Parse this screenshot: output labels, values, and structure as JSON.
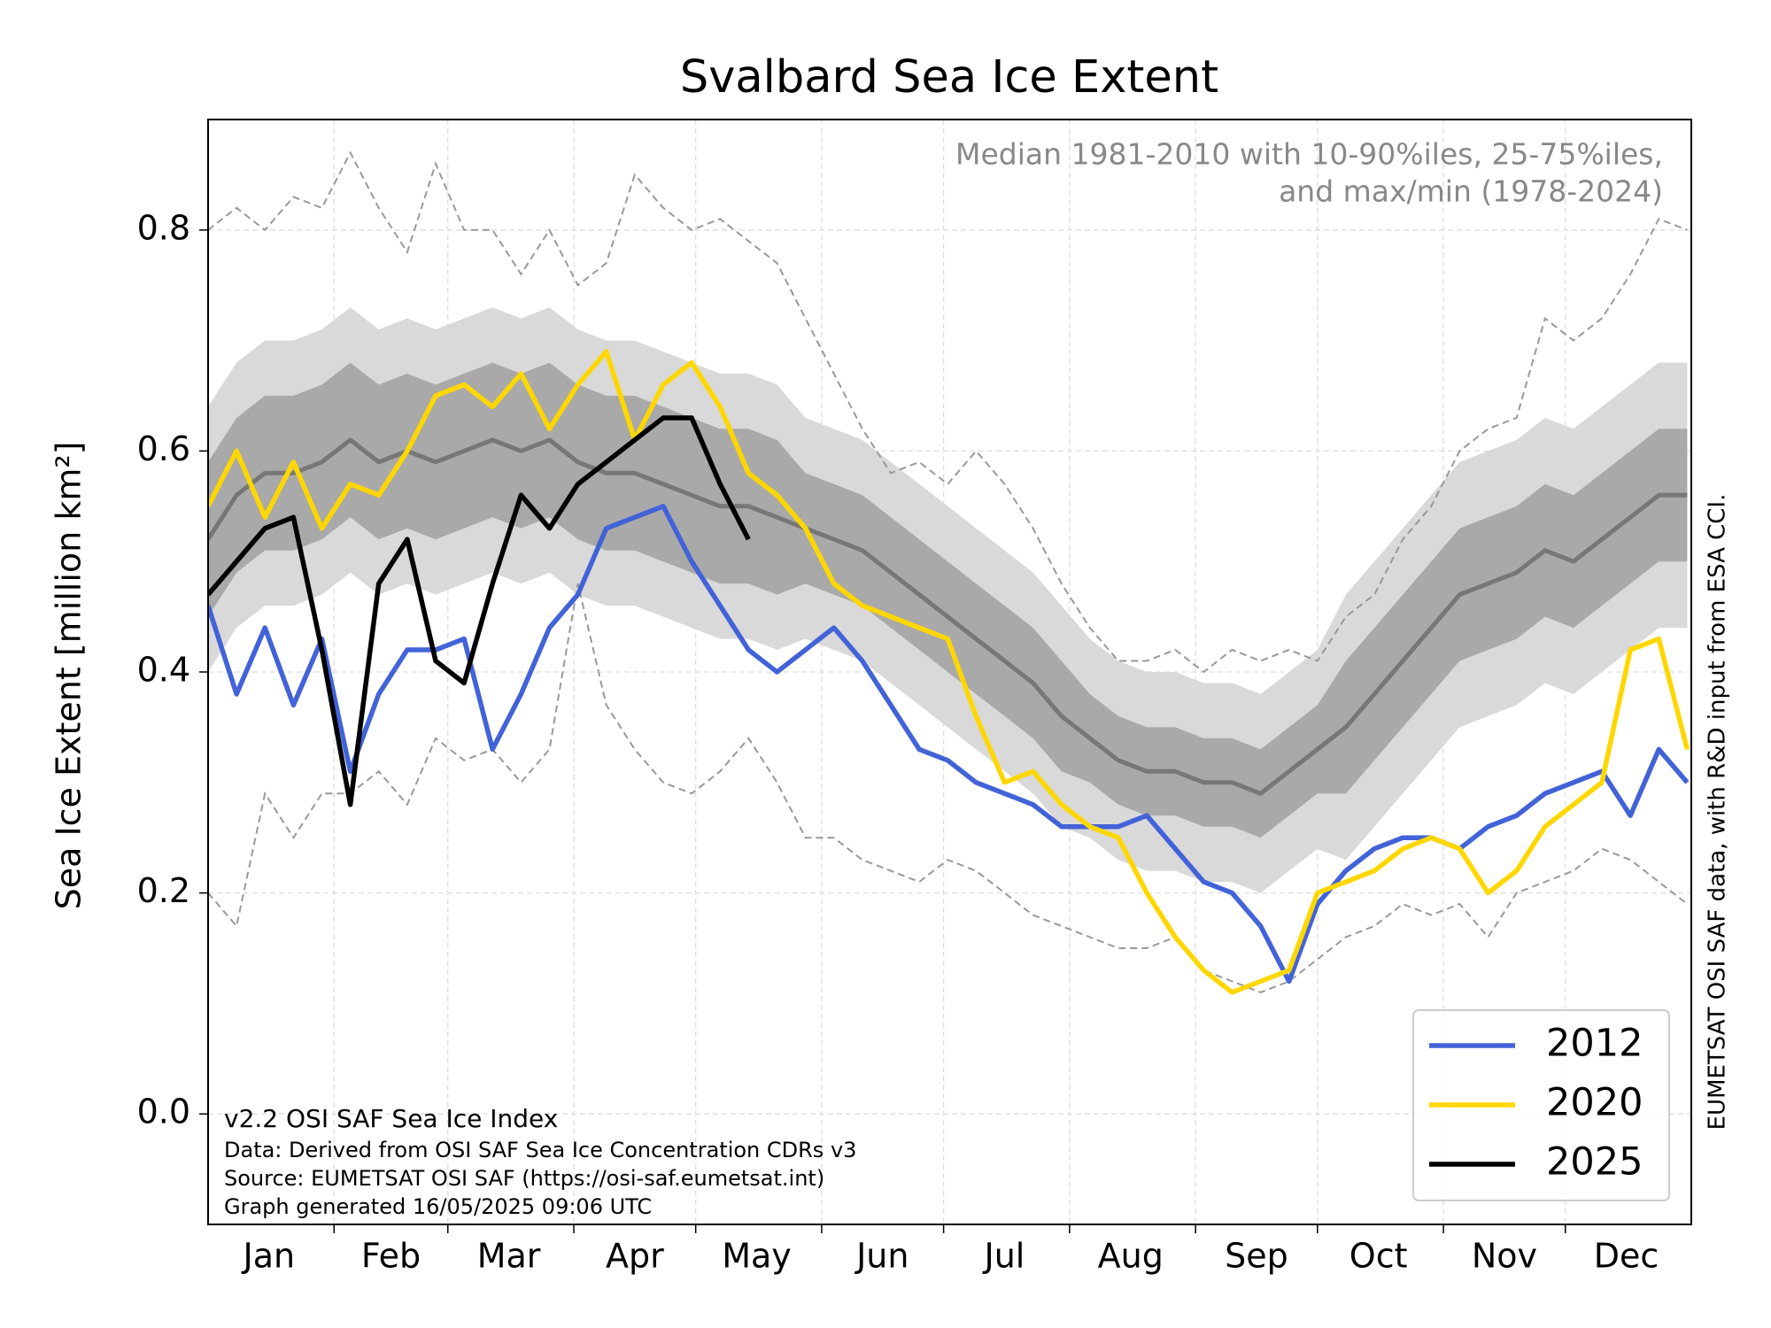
{
  "chart_data": {
    "type": "line",
    "title": "Svalbard Sea Ice Extent",
    "y_label": "Sea Ice Extent [million km²]",
    "annotation": [
      "Median 1981-2010 with 10-90%iles, 25-75%iles,",
      "and max/min (1978-2024)"
    ],
    "footnotes": [
      "v2.2 OSI SAF Sea Ice Index",
      "Data: Derived from OSI SAF Sea Ice Concentration CDRs v3",
      "Source: EUMETSAT OSI SAF (https://osi-saf.eumetsat.int)",
      "Graph generated 16/05/2025 09:06 UTC"
    ],
    "side_note": "EUMETSAT OSI SAF data, with R&D input from ESA CCI.",
    "xlim": [
      1,
      366
    ],
    "ylim": [
      -0.1,
      0.9
    ],
    "yticks": [
      {
        "value": 0,
        "label": "0.0"
      },
      0.2,
      0.4,
      0.6,
      0.8
    ],
    "xticks": [
      {
        "value": 16,
        "label": "Jan"
      },
      {
        "value": 46,
        "label": "Feb"
      },
      {
        "value": 75,
        "label": "Mar"
      },
      {
        "value": 106,
        "label": "Apr"
      },
      {
        "value": 136,
        "label": "May"
      },
      {
        "value": 167,
        "label": "Jun"
      },
      {
        "value": 197,
        "label": "Jul"
      },
      {
        "value": 228,
        "label": "Aug"
      },
      {
        "value": 259,
        "label": "Sep"
      },
      {
        "value": 289,
        "label": "Oct"
      },
      {
        "value": 320,
        "label": "Nov"
      },
      {
        "value": 350,
        "label": "Dec"
      }
    ],
    "xminor": [
      32,
      60,
      91,
      121,
      152,
      182,
      213,
      244,
      274,
      305,
      335
    ],
    "grid": true,
    "legend": "lower right",
    "x": [
      1,
      8,
      15,
      22,
      29,
      36,
      43,
      50,
      57,
      64,
      71,
      78,
      85,
      92,
      99,
      106,
      113,
      120,
      127,
      134,
      141,
      148,
      155,
      162,
      169,
      176,
      183,
      190,
      197,
      204,
      211,
      218,
      225,
      232,
      239,
      246,
      253,
      260,
      267,
      274,
      281,
      288,
      295,
      302,
      309,
      316,
      323,
      330,
      337,
      344,
      351,
      358,
      365
    ],
    "bands": [
      {
        "color": "#d9d9d9",
        "upper": [
          0.64,
          0.68,
          0.7,
          0.7,
          0.71,
          0.73,
          0.71,
          0.72,
          0.71,
          0.72,
          0.73,
          0.72,
          0.73,
          0.71,
          0.7,
          0.7,
          0.69,
          0.68,
          0.67,
          0.67,
          0.66,
          0.63,
          0.62,
          0.61,
          0.59,
          0.57,
          0.55,
          0.53,
          0.51,
          0.49,
          0.46,
          0.43,
          0.41,
          0.4,
          0.4,
          0.39,
          0.39,
          0.38,
          0.4,
          0.42,
          0.47,
          0.5,
          0.53,
          0.56,
          0.59,
          0.6,
          0.61,
          0.63,
          0.62,
          0.64,
          0.66,
          0.68,
          0.68
        ],
        "lower": [
          0.4,
          0.44,
          0.46,
          0.46,
          0.47,
          0.49,
          0.47,
          0.48,
          0.47,
          0.48,
          0.49,
          0.48,
          0.49,
          0.47,
          0.46,
          0.46,
          0.45,
          0.44,
          0.43,
          0.43,
          0.42,
          0.43,
          0.42,
          0.41,
          0.39,
          0.37,
          0.35,
          0.33,
          0.31,
          0.29,
          0.26,
          0.25,
          0.23,
          0.22,
          0.22,
          0.21,
          0.21,
          0.2,
          0.22,
          0.24,
          0.23,
          0.26,
          0.29,
          0.32,
          0.35,
          0.36,
          0.37,
          0.39,
          0.38,
          0.4,
          0.42,
          0.44,
          0.44
        ]
      },
      {
        "color": "#a9a9a9",
        "upper": [
          0.59,
          0.63,
          0.65,
          0.65,
          0.66,
          0.68,
          0.66,
          0.67,
          0.66,
          0.67,
          0.68,
          0.67,
          0.68,
          0.66,
          0.65,
          0.65,
          0.64,
          0.63,
          0.62,
          0.62,
          0.61,
          0.58,
          0.57,
          0.56,
          0.54,
          0.52,
          0.5,
          0.48,
          0.46,
          0.44,
          0.41,
          0.38,
          0.36,
          0.35,
          0.35,
          0.34,
          0.34,
          0.33,
          0.35,
          0.37,
          0.41,
          0.44,
          0.47,
          0.5,
          0.53,
          0.54,
          0.55,
          0.57,
          0.56,
          0.58,
          0.6,
          0.62,
          0.62
        ],
        "lower": [
          0.45,
          0.49,
          0.51,
          0.51,
          0.52,
          0.54,
          0.52,
          0.53,
          0.52,
          0.53,
          0.54,
          0.53,
          0.54,
          0.52,
          0.51,
          0.51,
          0.5,
          0.49,
          0.48,
          0.48,
          0.47,
          0.48,
          0.47,
          0.46,
          0.44,
          0.42,
          0.4,
          0.38,
          0.36,
          0.34,
          0.31,
          0.3,
          0.28,
          0.27,
          0.27,
          0.26,
          0.26,
          0.25,
          0.27,
          0.29,
          0.29,
          0.32,
          0.35,
          0.38,
          0.41,
          0.42,
          0.43,
          0.45,
          0.44,
          0.46,
          0.48,
          0.5,
          0.5
        ]
      }
    ],
    "median": {
      "color": "#777777",
      "values": [
        0.52,
        0.56,
        0.58,
        0.58,
        0.59,
        0.61,
        0.59,
        0.6,
        0.59,
        0.6,
        0.61,
        0.6,
        0.61,
        0.59,
        0.58,
        0.58,
        0.57,
        0.56,
        0.55,
        0.55,
        0.54,
        0.53,
        0.52,
        0.51,
        0.49,
        0.47,
        0.45,
        0.43,
        0.41,
        0.39,
        0.36,
        0.34,
        0.32,
        0.31,
        0.31,
        0.3,
        0.3,
        0.29,
        0.31,
        0.33,
        0.35,
        0.38,
        0.41,
        0.44,
        0.47,
        0.48,
        0.49,
        0.51,
        0.5,
        0.52,
        0.54,
        0.56,
        0.56
      ]
    },
    "extremes": {
      "color": "#999999",
      "max": [
        0.8,
        0.82,
        0.8,
        0.83,
        0.82,
        0.87,
        0.82,
        0.78,
        0.86,
        0.8,
        0.8,
        0.76,
        0.8,
        0.75,
        0.77,
        0.85,
        0.82,
        0.8,
        0.81,
        0.79,
        0.77,
        0.72,
        0.67,
        0.62,
        0.58,
        0.59,
        0.57,
        0.6,
        0.57,
        0.53,
        0.48,
        0.44,
        0.41,
        0.41,
        0.42,
        0.4,
        0.42,
        0.41,
        0.42,
        0.41,
        0.45,
        0.47,
        0.52,
        0.55,
        0.6,
        0.62,
        0.63,
        0.72,
        0.7,
        0.72,
        0.76,
        0.81,
        0.8
      ],
      "min": [
        0.2,
        0.17,
        0.29,
        0.25,
        0.29,
        0.29,
        0.31,
        0.28,
        0.34,
        0.32,
        0.33,
        0.3,
        0.33,
        0.48,
        0.37,
        0.33,
        0.3,
        0.29,
        0.31,
        0.34,
        0.3,
        0.25,
        0.25,
        0.23,
        0.22,
        0.21,
        0.23,
        0.22,
        0.2,
        0.18,
        0.17,
        0.16,
        0.15,
        0.15,
        0.16,
        0.13,
        0.12,
        0.11,
        0.12,
        0.14,
        0.16,
        0.17,
        0.19,
        0.18,
        0.19,
        0.16,
        0.2,
        0.21,
        0.22,
        0.24,
        0.23,
        0.21,
        0.19
      ]
    },
    "series": [
      {
        "name": "2012",
        "color": "#4263d8",
        "values": [
          0.46,
          0.38,
          0.44,
          0.37,
          0.43,
          0.31,
          0.38,
          0.42,
          0.42,
          0.43,
          0.33,
          0.38,
          0.44,
          0.47,
          0.53,
          0.54,
          0.55,
          0.5,
          0.46,
          0.42,
          0.4,
          0.42,
          0.44,
          0.41,
          0.37,
          0.33,
          0.32,
          0.3,
          0.29,
          0.28,
          0.26,
          0.26,
          0.26,
          0.27,
          0.24,
          0.21,
          0.2,
          0.17,
          0.12,
          0.19,
          0.22,
          0.24,
          0.25,
          0.25,
          0.24,
          0.26,
          0.27,
          0.29,
          0.3,
          0.31,
          0.27,
          0.33,
          0.3
        ]
      },
      {
        "name": "2020",
        "color": "#ffd700",
        "values": [
          0.55,
          0.6,
          0.54,
          0.59,
          0.53,
          0.57,
          0.56,
          0.6,
          0.65,
          0.66,
          0.64,
          0.67,
          0.62,
          0.66,
          0.69,
          0.61,
          0.66,
          0.68,
          0.64,
          0.58,
          0.56,
          0.53,
          0.48,
          0.46,
          0.45,
          0.44,
          0.43,
          0.36,
          0.3,
          0.31,
          0.28,
          0.26,
          0.25,
          0.2,
          0.16,
          0.13,
          0.11,
          0.12,
          0.13,
          0.2,
          0.21,
          0.22,
          0.24,
          0.25,
          0.24,
          0.2,
          0.22,
          0.26,
          0.28,
          0.3,
          0.42,
          0.43,
          0.33
        ]
      },
      {
        "name": "2025",
        "color": "#000000",
        "values": [
          0.47,
          0.5,
          0.53,
          0.54,
          0.42,
          0.28,
          0.48,
          0.52,
          0.41,
          0.39,
          0.48,
          0.56,
          0.53,
          0.57,
          0.59,
          0.61,
          0.63,
          0.63,
          0.57,
          0.52,
          null,
          null,
          null,
          null,
          null,
          null,
          null,
          null,
          null,
          null,
          null,
          null,
          null,
          null,
          null,
          null,
          null,
          null,
          null,
          null,
          null,
          null,
          null,
          null,
          null,
          null,
          null,
          null,
          null,
          null,
          null,
          null,
          null
        ]
      }
    ]
  }
}
